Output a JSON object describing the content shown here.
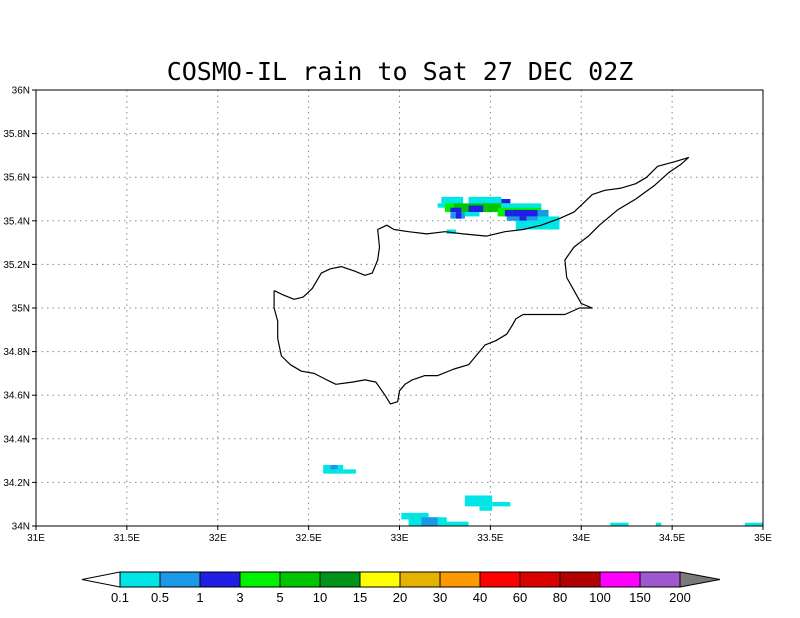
{
  "title": "COSMO-IL rain to Sat 27 DEC 02Z",
  "map": {
    "lon_range": [
      31.0,
      35.0
    ],
    "lat_range": [
      34.0,
      36.0
    ],
    "x_tick_labels": [
      {
        "lon": 31.0,
        "label": "31E"
      },
      {
        "lon": 31.5,
        "label": "31.5E"
      },
      {
        "lon": 32.0,
        "label": "32E"
      },
      {
        "lon": 32.5,
        "label": "32.5E"
      },
      {
        "lon": 33.0,
        "label": "33E"
      },
      {
        "lon": 33.5,
        "label": "33.5E"
      },
      {
        "lon": 34.0,
        "label": "34E"
      },
      {
        "lon": 34.5,
        "label": "34.5E"
      },
      {
        "lon": 35.0,
        "label": "35E"
      }
    ],
    "y_tick_labels": [
      {
        "lat": 34.0,
        "label": "34N"
      },
      {
        "lat": 34.2,
        "label": "34.2N"
      },
      {
        "lat": 34.4,
        "label": "34.4N"
      },
      {
        "lat": 34.6,
        "label": "34.6N"
      },
      {
        "lat": 34.8,
        "label": "34.8N"
      },
      {
        "lat": 35.0,
        "label": "35N"
      },
      {
        "lat": 35.2,
        "label": "35.2N"
      },
      {
        "lat": 35.4,
        "label": "35.4N"
      },
      {
        "lat": 35.6,
        "label": "35.6N"
      },
      {
        "lat": 35.8,
        "label": "35.8N"
      },
      {
        "lat": 36.0,
        "label": "36N"
      }
    ],
    "grid": true,
    "coastline_name": "Cyprus",
    "coastline": [
      [
        32.31,
        35.08
      ],
      [
        32.36,
        35.06
      ],
      [
        32.42,
        35.04
      ],
      [
        32.47,
        35.05
      ],
      [
        32.52,
        35.09
      ],
      [
        32.57,
        35.16
      ],
      [
        32.62,
        35.18
      ],
      [
        32.68,
        35.19
      ],
      [
        32.75,
        35.17
      ],
      [
        32.81,
        35.15
      ],
      [
        32.85,
        35.16
      ],
      [
        32.88,
        35.22
      ],
      [
        32.89,
        35.28
      ],
      [
        32.88,
        35.36
      ],
      [
        32.93,
        35.38
      ],
      [
        32.97,
        35.36
      ],
      [
        33.05,
        35.35
      ],
      [
        33.15,
        35.34
      ],
      [
        33.25,
        35.35
      ],
      [
        33.35,
        35.34
      ],
      [
        33.48,
        35.33
      ],
      [
        33.58,
        35.35
      ],
      [
        33.68,
        35.36
      ],
      [
        33.78,
        35.38
      ],
      [
        33.88,
        35.41
      ],
      [
        33.96,
        35.44
      ],
      [
        34.01,
        35.48
      ],
      [
        34.06,
        35.52
      ],
      [
        34.13,
        35.54
      ],
      [
        34.22,
        35.55
      ],
      [
        34.3,
        35.57
      ],
      [
        34.36,
        35.6
      ],
      [
        34.42,
        35.65
      ],
      [
        34.51,
        35.67
      ],
      [
        34.59,
        35.69
      ],
      [
        34.55,
        35.66
      ],
      [
        34.48,
        35.62
      ],
      [
        34.4,
        35.56
      ],
      [
        34.3,
        35.5
      ],
      [
        34.2,
        35.45
      ],
      [
        34.1,
        35.38
      ],
      [
        34.04,
        35.33
      ],
      [
        33.96,
        35.28
      ],
      [
        33.91,
        35.22
      ],
      [
        33.92,
        35.14
      ],
      [
        33.96,
        35.08
      ],
      [
        34.0,
        35.02
      ],
      [
        34.06,
        35.0
      ],
      [
        33.99,
        35.0
      ],
      [
        33.91,
        34.97
      ],
      [
        33.85,
        34.97
      ],
      [
        33.75,
        34.97
      ],
      [
        33.68,
        34.97
      ],
      [
        33.64,
        34.95
      ],
      [
        33.62,
        34.92
      ],
      [
        33.59,
        34.88
      ],
      [
        33.53,
        34.85
      ],
      [
        33.47,
        34.83
      ],
      [
        33.38,
        34.74
      ],
      [
        33.3,
        34.72
      ],
      [
        33.21,
        34.69
      ],
      [
        33.14,
        34.69
      ],
      [
        33.07,
        34.67
      ],
      [
        33.03,
        34.65
      ],
      [
        33.0,
        34.62
      ],
      [
        32.99,
        34.57
      ],
      [
        32.95,
        34.56
      ],
      [
        32.92,
        34.6
      ],
      [
        32.87,
        34.66
      ],
      [
        32.81,
        34.67
      ],
      [
        32.74,
        34.66
      ],
      [
        32.65,
        34.65
      ],
      [
        32.6,
        34.67
      ],
      [
        32.53,
        34.7
      ],
      [
        32.46,
        34.71
      ],
      [
        32.4,
        34.74
      ],
      [
        32.35,
        34.78
      ],
      [
        32.33,
        34.86
      ],
      [
        32.33,
        34.94
      ],
      [
        32.31,
        35.0
      ],
      [
        32.31,
        35.08
      ]
    ]
  },
  "precip_cells": [
    {
      "lon": 33.23,
      "lat": 35.51,
      "lon2": 33.35,
      "lat2": 35.47,
      "cat": 0
    },
    {
      "lon": 33.38,
      "lat": 35.51,
      "lon2": 33.56,
      "lat2": 35.47,
      "cat": 0
    },
    {
      "lon": 33.21,
      "lat": 35.48,
      "lon2": 33.25,
      "lat2": 35.46,
      "cat": 0
    },
    {
      "lon": 33.25,
      "lat": 35.48,
      "lon2": 33.3,
      "lat2": 35.44,
      "cat": 3
    },
    {
      "lon": 33.3,
      "lat": 35.48,
      "lon2": 33.48,
      "lat2": 35.44,
      "cat": 4
    },
    {
      "lon": 33.48,
      "lat": 35.48,
      "lon2": 33.56,
      "lat2": 35.44,
      "cat": 4
    },
    {
      "lon": 33.56,
      "lat": 35.5,
      "lon2": 33.61,
      "lat2": 35.48,
      "cat": 2
    },
    {
      "lon": 33.56,
      "lat": 35.48,
      "lon2": 33.78,
      "lat2": 35.44,
      "cat": 0
    },
    {
      "lon": 33.28,
      "lat": 35.46,
      "lon2": 33.34,
      "lat2": 35.44,
      "cat": 2
    },
    {
      "lon": 33.38,
      "lat": 35.47,
      "lon2": 33.46,
      "lat2": 35.44,
      "cat": 2
    },
    {
      "lon": 33.28,
      "lat": 35.44,
      "lon2": 33.36,
      "lat2": 35.41,
      "cat": 1
    },
    {
      "lon": 33.31,
      "lat": 35.44,
      "lon2": 33.34,
      "lat2": 35.41,
      "cat": 2
    },
    {
      "lon": 33.36,
      "lat": 35.44,
      "lon2": 33.44,
      "lat2": 35.42,
      "cat": 0
    },
    {
      "lon": 33.54,
      "lat": 35.46,
      "lon2": 33.78,
      "lat2": 35.42,
      "cat": 3
    },
    {
      "lon": 33.58,
      "lat": 35.45,
      "lon2": 33.62,
      "lat2": 35.42,
      "cat": 2
    },
    {
      "lon": 33.62,
      "lat": 35.45,
      "lon2": 33.76,
      "lat2": 35.42,
      "cat": 2
    },
    {
      "lon": 33.76,
      "lat": 35.45,
      "lon2": 33.82,
      "lat2": 35.41,
      "cat": 1
    },
    {
      "lon": 33.59,
      "lat": 35.42,
      "lon2": 33.66,
      "lat2": 35.4,
      "cat": 1
    },
    {
      "lon": 33.66,
      "lat": 35.42,
      "lon2": 33.7,
      "lat2": 35.4,
      "cat": 2
    },
    {
      "lon": 33.7,
      "lat": 35.42,
      "lon2": 33.76,
      "lat2": 35.4,
      "cat": 1
    },
    {
      "lon": 33.76,
      "lat": 35.42,
      "lon2": 33.88,
      "lat2": 35.36,
      "cat": 0
    },
    {
      "lon": 33.64,
      "lat": 35.4,
      "lon2": 33.76,
      "lat2": 35.36,
      "cat": 0
    },
    {
      "lon": 33.26,
      "lat": 35.36,
      "lon2": 33.31,
      "lat2": 35.34,
      "cat": 0
    },
    {
      "lon": 32.58,
      "lat": 34.28,
      "lon2": 32.66,
      "lat2": 34.24,
      "cat": 0
    },
    {
      "lon": 32.66,
      "lat": 34.28,
      "lon2": 32.69,
      "lat2": 34.24,
      "cat": 0
    },
    {
      "lon": 32.69,
      "lat": 34.26,
      "lon2": 32.76,
      "lat2": 34.24,
      "cat": 0
    },
    {
      "lon": 32.62,
      "lat": 34.28,
      "lon2": 32.66,
      "lat2": 34.26,
      "cat": 1
    },
    {
      "lon": 33.36,
      "lat": 34.14,
      "lon2": 33.51,
      "lat2": 34.09,
      "cat": 0
    },
    {
      "lon": 33.44,
      "lat": 34.09,
      "lon2": 33.51,
      "lat2": 34.07,
      "cat": 0
    },
    {
      "lon": 33.51,
      "lat": 34.11,
      "lon2": 33.61,
      "lat2": 34.09,
      "cat": 0
    },
    {
      "lon": 33.01,
      "lat": 34.06,
      "lon2": 33.16,
      "lat2": 34.03,
      "cat": 0
    },
    {
      "lon": 33.05,
      "lat": 34.04,
      "lon2": 33.26,
      "lat2": 34.0,
      "cat": 0
    },
    {
      "lon": 33.12,
      "lat": 34.04,
      "lon2": 33.21,
      "lat2": 34.0,
      "cat": 1
    },
    {
      "lon": 33.21,
      "lat": 34.02,
      "lon2": 33.38,
      "lat2": 34.0,
      "cat": 0
    },
    {
      "lon": 34.16,
      "lat": 34.015,
      "lon2": 34.26,
      "lat2": 34.0,
      "cat": 0
    },
    {
      "lon": 34.41,
      "lat": 34.015,
      "lon2": 34.44,
      "lat2": 34.0,
      "cat": 0
    },
    {
      "lon": 34.9,
      "lat": 34.015,
      "lon2": 35.0,
      "lat2": 34.0,
      "cat": 0
    }
  ],
  "colorbar": {
    "colors": [
      "#00e5e5",
      "#1a9ae6",
      "#1f1fe6",
      "#00f200",
      "#00c400",
      "#00931a",
      "#ffff00",
      "#e6b200",
      "#ff9900",
      "#ff0000",
      "#d90000",
      "#b30000",
      "#ff00ff",
      "#9e57cc",
      "#7a7a7a"
    ],
    "under_color": "#ffffff",
    "over_color": "#7a7a7a",
    "labels": [
      "0.1",
      "0.5",
      "1",
      "3",
      "5",
      "10",
      "15",
      "20",
      "30",
      "40",
      "60",
      "80",
      "100",
      "150",
      "200"
    ]
  }
}
